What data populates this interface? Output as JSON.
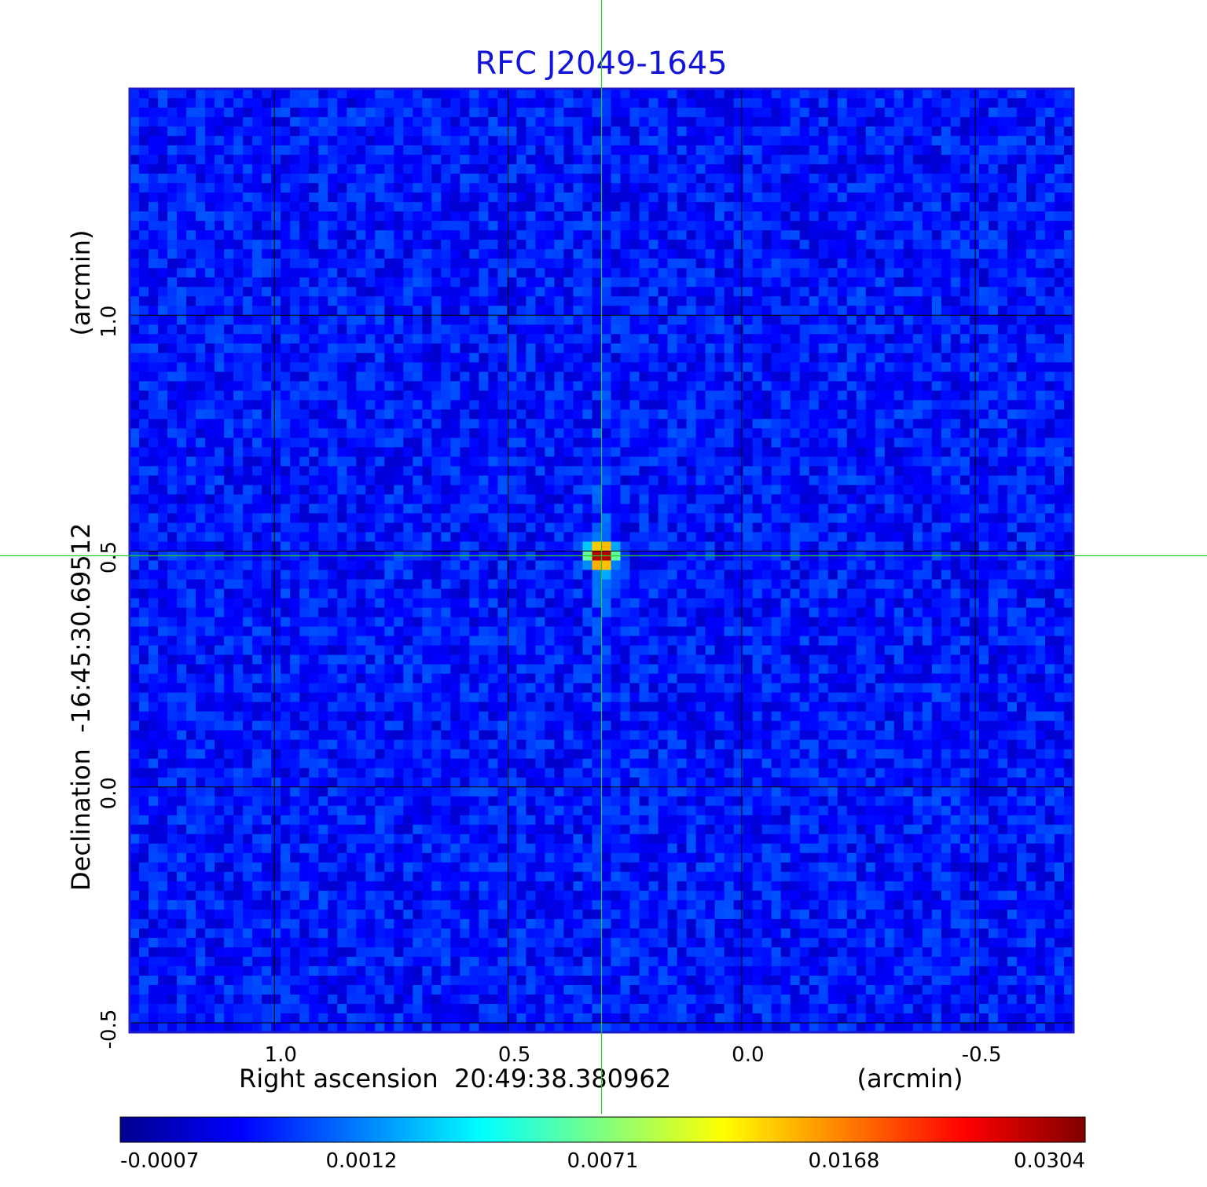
{
  "chart_data": {
    "type": "heatmap",
    "title": "RFC J2049-1645",
    "xlabel": "Right ascension  20:49:38.380962",
    "xunit": "(arcmin)",
    "ylabel": "Declination  -16:45:30.69512",
    "yunit": "(arcmin)",
    "x_ticks": [
      {
        "value": 1.0,
        "label": "1.0"
      },
      {
        "value": 0.5,
        "label": "0.5"
      },
      {
        "value": 0.0,
        "label": "0.0"
      },
      {
        "value": -0.5,
        "label": "-0.5"
      }
    ],
    "y_ticks": [
      {
        "value": 1.0,
        "label": "1.0"
      },
      {
        "value": 0.5,
        "label": "0.5"
      },
      {
        "value": 0.0,
        "label": "0.0"
      },
      {
        "value": -0.5,
        "label": "-0.5"
      }
    ],
    "xlim": [
      1.31,
      -0.71
    ],
    "ylim": [
      -0.52,
      1.48
    ],
    "grid": true,
    "crosshair": {
      "x": 0.3,
      "y": 0.49,
      "color": "#22cc22"
    },
    "peak": {
      "x": 0.3,
      "y": 0.49,
      "value": 0.0304
    },
    "background_level": 0.0005,
    "colormap": "jet",
    "colorbar": {
      "ticks": [
        "-0.0007",
        "0.0012",
        "0.0071",
        "0.0168",
        "0.0304"
      ],
      "min": -0.0007,
      "max": 0.0304
    },
    "title_color": "#1414d8"
  }
}
